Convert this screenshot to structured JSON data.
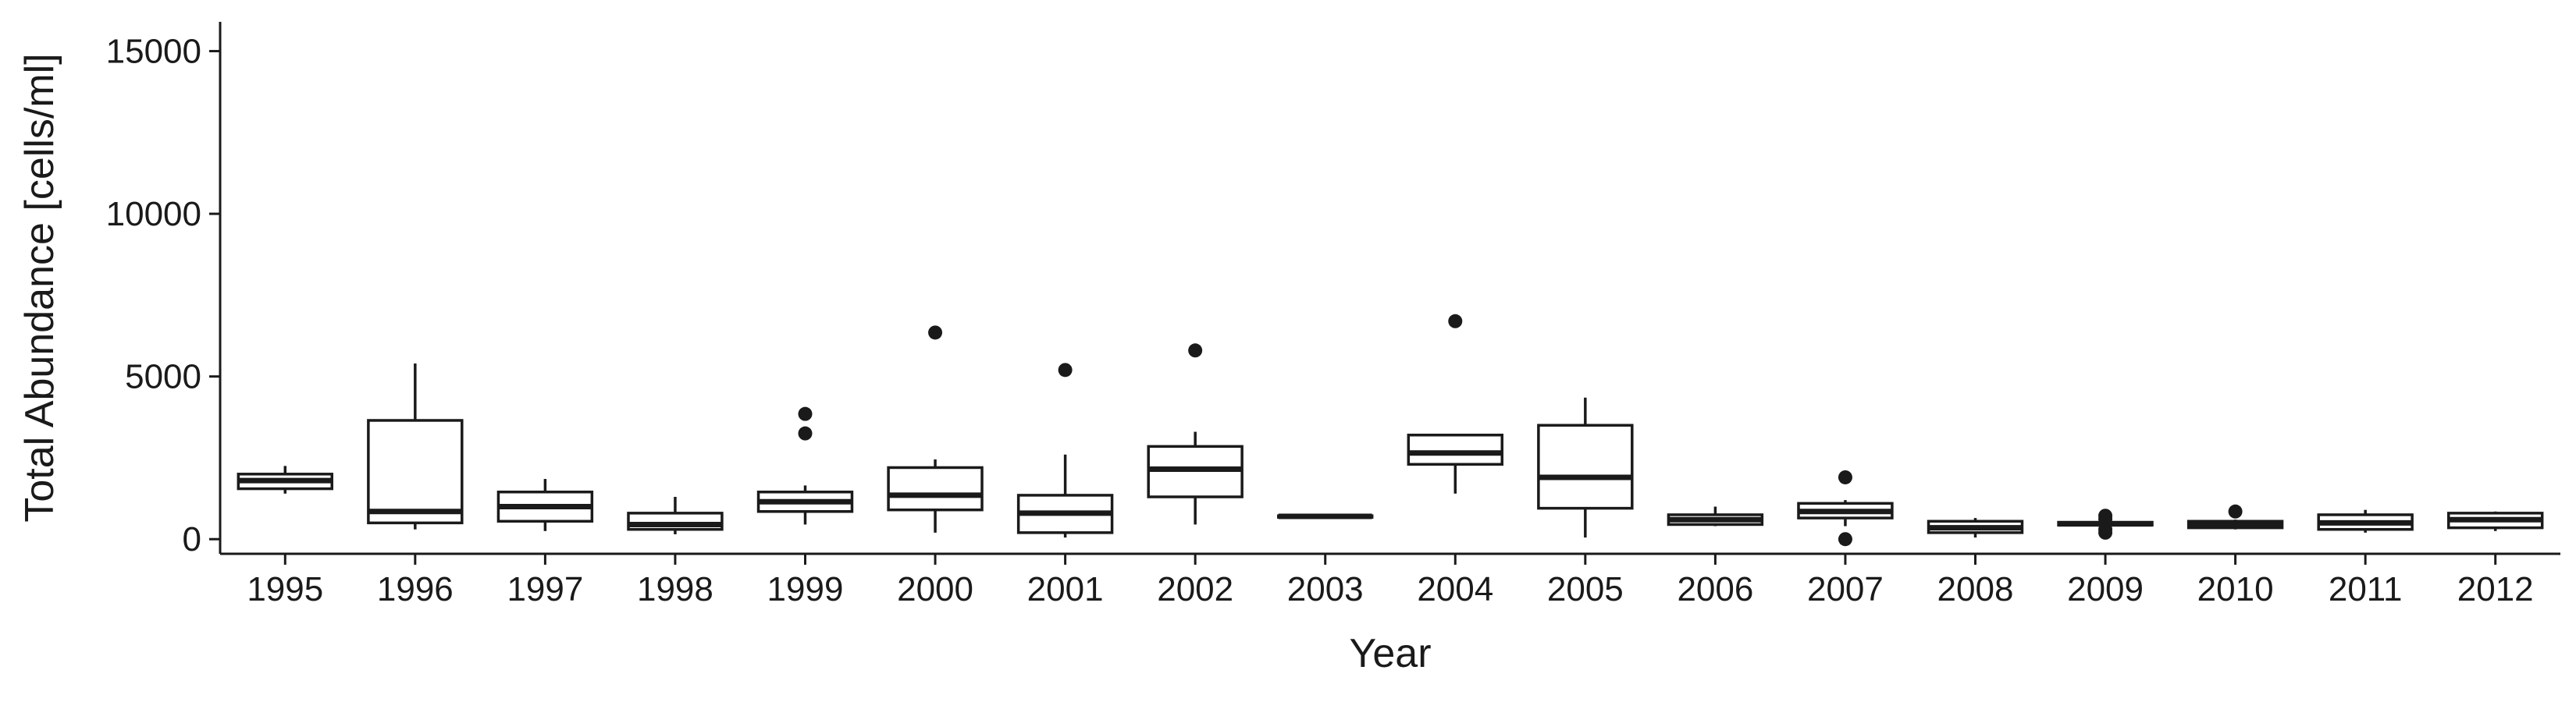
{
  "chart_data": {
    "type": "boxplot",
    "xlabel": "Year",
    "ylabel": "Total Abundance [cells/ml]",
    "ylim": [
      -450,
      15900
    ],
    "yticks": [
      0,
      5000,
      10000,
      15000
    ],
    "ytick_labels": [
      "0",
      "5000",
      "10000",
      "15000"
    ],
    "grid": false,
    "colors": {
      "box_fill": "#ffffff",
      "stroke": "#1a1a1a",
      "background": "#ffffff"
    },
    "categories": [
      "1995",
      "1996",
      "1997",
      "1998",
      "1999",
      "2000",
      "2001",
      "2002",
      "2003",
      "2004",
      "2005",
      "2006",
      "2007",
      "2008",
      "2009",
      "2010",
      "2011",
      "2012"
    ],
    "boxes": [
      {
        "year": "1995",
        "whisker_low": 1400,
        "q1": 1550,
        "median": 1800,
        "q3": 2000,
        "whisker_high": 2250,
        "outliers": []
      },
      {
        "year": "1996",
        "whisker_low": 300,
        "q1": 500,
        "median": 850,
        "q3": 3650,
        "whisker_high": 5400,
        "outliers": []
      },
      {
        "year": "1997",
        "whisker_low": 250,
        "q1": 550,
        "median": 1000,
        "q3": 1450,
        "whisker_high": 1850,
        "outliers": []
      },
      {
        "year": "1998",
        "whisker_low": 150,
        "q1": 300,
        "median": 450,
        "q3": 800,
        "whisker_high": 1300,
        "outliers": []
      },
      {
        "year": "1999",
        "whisker_low": 450,
        "q1": 850,
        "median": 1150,
        "q3": 1450,
        "whisker_high": 1650,
        "outliers": [
          3250,
          3850
        ]
      },
      {
        "year": "2000",
        "whisker_low": 200,
        "q1": 900,
        "median": 1350,
        "q3": 2200,
        "whisker_high": 2450,
        "outliers": [
          6350
        ]
      },
      {
        "year": "2001",
        "whisker_low": 50,
        "q1": 200,
        "median": 800,
        "q3": 1350,
        "whisker_high": 2600,
        "outliers": [
          5200
        ]
      },
      {
        "year": "2002",
        "whisker_low": 450,
        "q1": 1300,
        "median": 2150,
        "q3": 2850,
        "whisker_high": 3300,
        "outliers": [
          5800
        ]
      },
      {
        "year": "2003",
        "whisker_low": 650,
        "q1": 680,
        "median": 700,
        "q3": 720,
        "whisker_high": 740,
        "outliers": []
      },
      {
        "year": "2004",
        "whisker_low": 1400,
        "q1": 2300,
        "median": 2650,
        "q3": 3200,
        "whisker_high": 3200,
        "outliers": [
          6700
        ]
      },
      {
        "year": "2005",
        "whisker_low": 50,
        "q1": 950,
        "median": 1900,
        "q3": 3500,
        "whisker_high": 4350,
        "outliers": []
      },
      {
        "year": "2006",
        "whisker_low": 400,
        "q1": 450,
        "median": 600,
        "q3": 750,
        "whisker_high": 1000,
        "outliers": []
      },
      {
        "year": "2007",
        "whisker_low": 400,
        "q1": 650,
        "median": 850,
        "q3": 1100,
        "whisker_high": 1200,
        "outliers": [
          0,
          1900
        ]
      },
      {
        "year": "2008",
        "whisker_low": 50,
        "q1": 200,
        "median": 350,
        "q3": 550,
        "whisker_high": 650,
        "outliers": []
      },
      {
        "year": "2009",
        "whisker_low": 400,
        "q1": 430,
        "median": 470,
        "q3": 520,
        "whisker_high": 560,
        "outliers": [
          200,
          300,
          620,
          720
        ]
      },
      {
        "year": "2010",
        "whisker_low": 300,
        "q1": 350,
        "median": 450,
        "q3": 550,
        "whisker_high": 600,
        "outliers": [
          850
        ]
      },
      {
        "year": "2011",
        "whisker_low": 200,
        "q1": 300,
        "median": 500,
        "q3": 750,
        "whisker_high": 900,
        "outliers": []
      },
      {
        "year": "2012",
        "whisker_low": 250,
        "q1": 350,
        "median": 600,
        "q3": 800,
        "whisker_high": 850,
        "outliers": []
      }
    ]
  }
}
